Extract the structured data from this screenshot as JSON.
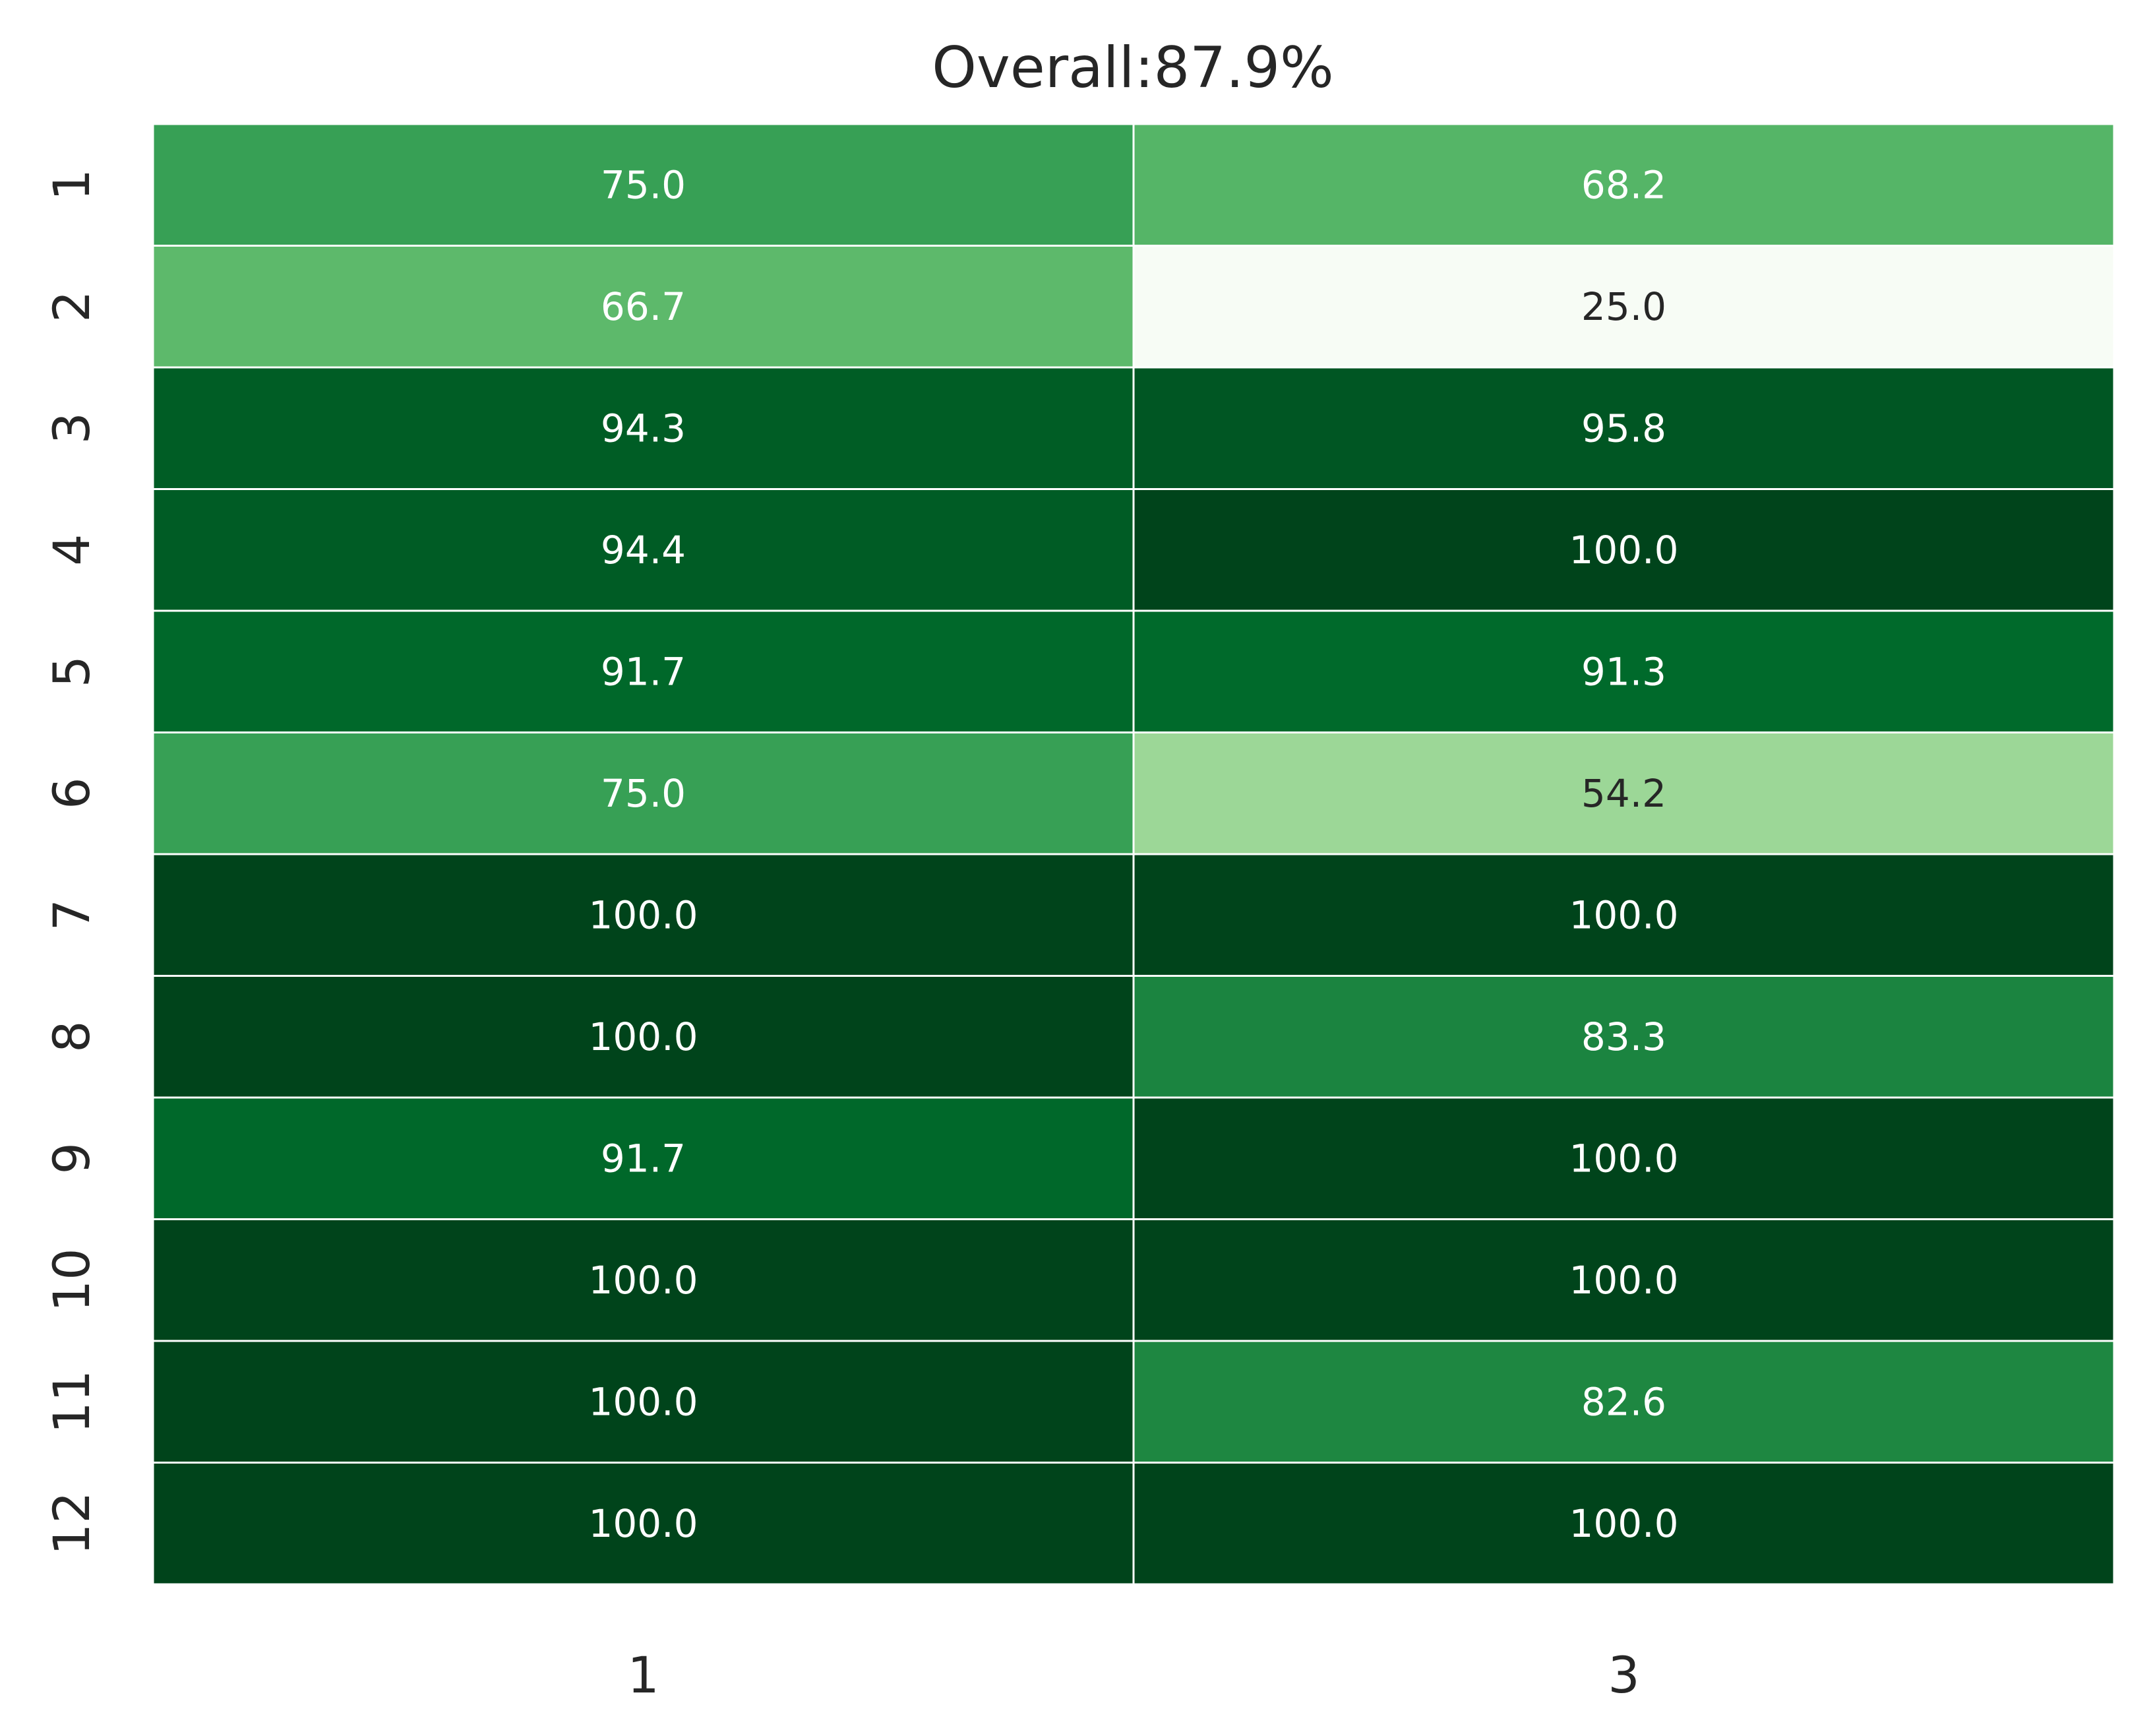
{
  "chart_data": {
    "type": "heatmap",
    "title": "Overall:87.9%",
    "x_categories": [
      "1",
      "3"
    ],
    "y_categories": [
      "1",
      "2",
      "3",
      "4",
      "5",
      "6",
      "7",
      "8",
      "9",
      "10",
      "11",
      "12"
    ],
    "values": [
      [
        75.0,
        68.2
      ],
      [
        66.7,
        25.0
      ],
      [
        94.3,
        95.8
      ],
      [
        94.4,
        100.0
      ],
      [
        91.7,
        91.3
      ],
      [
        75.0,
        54.2
      ],
      [
        100.0,
        100.0
      ],
      [
        100.0,
        83.3
      ],
      [
        91.7,
        100.0
      ],
      [
        100.0,
        100.0
      ],
      [
        100.0,
        82.6
      ],
      [
        100.0,
        100.0
      ]
    ],
    "value_labels": [
      [
        "75.0",
        "68.2"
      ],
      [
        "66.7",
        "25.0"
      ],
      [
        "94.3",
        "95.8"
      ],
      [
        "94.4",
        "100.0"
      ],
      [
        "91.7",
        "91.3"
      ],
      [
        "75.0",
        "54.2"
      ],
      [
        "100.0",
        "100.0"
      ],
      [
        "100.0",
        "83.3"
      ],
      [
        "91.7",
        "100.0"
      ],
      [
        "100.0",
        "100.0"
      ],
      [
        "100.0",
        "82.6"
      ],
      [
        "100.0",
        "100.0"
      ]
    ],
    "vmin": 25.0,
    "vmax": 100.0,
    "colormap": "Greens",
    "grid_line_color": "#ffffff",
    "text_color_dark_cells": "#ffffff",
    "text_color_light_cells": "#262626",
    "colorbar": false
  }
}
